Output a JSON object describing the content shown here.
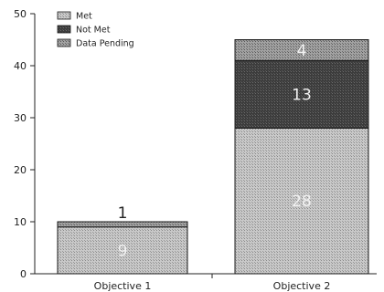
{
  "chart_data": {
    "type": "bar",
    "stacked": true,
    "categories": [
      "Objective 1",
      "Objective 2"
    ],
    "series": [
      {
        "name": "Met",
        "values": [
          9,
          28
        ],
        "color": "#b8b8b8"
      },
      {
        "name": "Not Met",
        "values": [
          0,
          13
        ],
        "color": "#4a4a4a"
      },
      {
        "name": "Data Pending",
        "values": [
          1,
          4
        ],
        "color": "#8c8c8c"
      }
    ],
    "data_labels": [
      {
        "category": "Objective 1",
        "series": "Met",
        "text": "9"
      },
      {
        "category": "Objective 1",
        "series": "Data Pending",
        "text": "1"
      },
      {
        "category": "Objective 2",
        "series": "Met",
        "text": "28"
      },
      {
        "category": "Objective 2",
        "series": "Not Met",
        "text": "13"
      },
      {
        "category": "Objective 2",
        "series": "Data Pending",
        "text": "4"
      }
    ],
    "yticks": [
      0,
      10,
      20,
      30,
      40
    ],
    "ylim": [
      0,
      50
    ],
    "y_top_label": "50",
    "legend_position": "top-left",
    "grid": false
  }
}
